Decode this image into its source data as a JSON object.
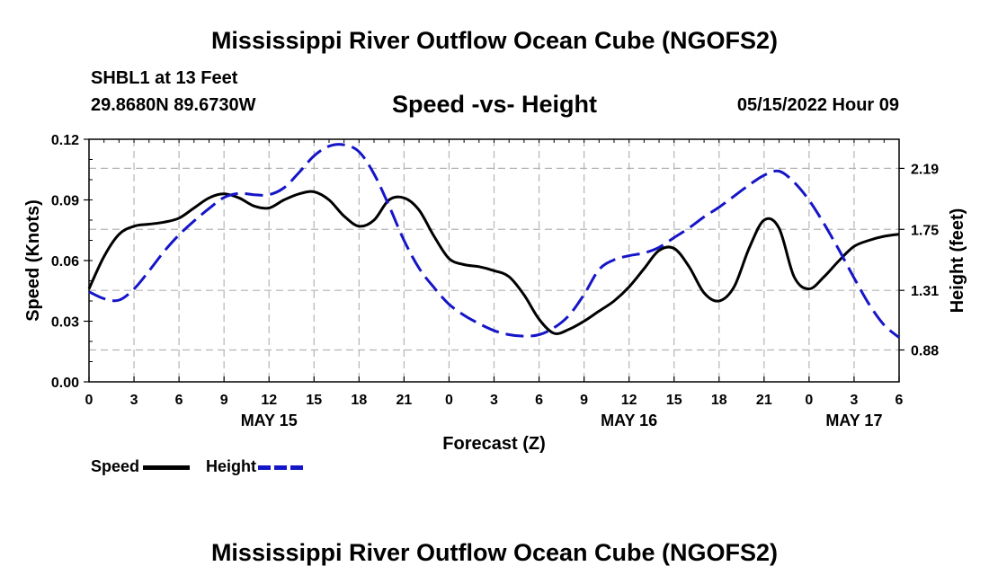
{
  "header": {
    "top_title": "Mississippi River Outflow Ocean Cube (NGOFS2)",
    "station": "SHBL1 at 13 Feet",
    "coordinates": "29.8680N  89.6730W",
    "run_time": "05/15/2022 Hour 09",
    "bottom_title": "Mississippi River Outflow Ocean Cube (NGOFS2)"
  },
  "colors": {
    "speed": "#000000",
    "height": "#1515c8",
    "grid": "#b4b4b4"
  },
  "chart_data": {
    "type": "line",
    "title": "Speed -vs- Height",
    "xlabel": "Forecast (Z)",
    "ylabel": "Speed (Knots)",
    "y2label": "Height (feet)",
    "xlim": [
      0,
      54
    ],
    "ylim": [
      0,
      0.12
    ],
    "y2lim": [
      0.65,
      2.4
    ],
    "x_ticks": [
      0,
      3,
      6,
      9,
      12,
      15,
      18,
      21,
      24,
      27,
      30,
      33,
      36,
      39,
      42,
      45,
      48,
      51,
      54
    ],
    "x_tick_labels": [
      "0",
      "3",
      "6",
      "9",
      "12",
      "15",
      "18",
      "21",
      "0",
      "3",
      "6",
      "9",
      "12",
      "15",
      "18",
      "21",
      "0",
      "3",
      "6"
    ],
    "date_labels": [
      {
        "x": 12,
        "label": "MAY 15"
      },
      {
        "x": 36,
        "label": "MAY 16"
      },
      {
        "x": 51,
        "label": "MAY 17"
      }
    ],
    "y_ticks": [
      0,
      0.03,
      0.06,
      0.09,
      0.12
    ],
    "y_tick_labels": [
      "0.00",
      "0.03",
      "0.06",
      "0.09",
      "0.12"
    ],
    "y2_ticks": [
      0.88,
      1.31,
      1.75,
      2.19
    ],
    "y2_tick_labels": [
      "0.88",
      "1.31",
      "1.75",
      "2.19"
    ],
    "grid": true,
    "legend_position": "bottom-left",
    "series": [
      {
        "name": "Speed",
        "axis": "left",
        "style": "solid",
        "x": [
          0,
          1,
          2,
          3,
          4,
          5,
          6,
          7,
          8,
          9,
          10,
          11,
          12,
          13,
          14,
          15,
          16,
          17,
          18,
          19,
          20,
          21,
          22,
          23,
          24,
          25,
          26,
          27,
          28,
          29,
          30,
          31,
          32,
          33,
          34,
          35,
          36,
          37,
          38,
          39,
          40,
          41,
          42,
          43,
          44,
          45,
          46,
          47,
          48,
          49,
          50,
          51,
          52,
          53,
          54
        ],
        "values": [
          0.046,
          0.062,
          0.073,
          0.077,
          0.078,
          0.079,
          0.081,
          0.086,
          0.091,
          0.093,
          0.091,
          0.087,
          0.086,
          0.09,
          0.093,
          0.094,
          0.09,
          0.082,
          0.077,
          0.08,
          0.09,
          0.091,
          0.085,
          0.072,
          0.061,
          0.058,
          0.057,
          0.055,
          0.052,
          0.043,
          0.031,
          0.024,
          0.026,
          0.03,
          0.035,
          0.04,
          0.047,
          0.056,
          0.065,
          0.066,
          0.057,
          0.044,
          0.04,
          0.047,
          0.066,
          0.08,
          0.076,
          0.052,
          0.046,
          0.052,
          0.06,
          0.067,
          0.07,
          0.072,
          0.073
        ]
      },
      {
        "name": "Height",
        "axis": "right",
        "style": "dashed",
        "x": [
          0,
          1,
          2,
          3,
          4,
          5,
          6,
          7,
          8,
          9,
          10,
          11,
          12,
          13,
          14,
          15,
          16,
          17,
          18,
          19,
          20,
          21,
          22,
          23,
          24,
          25,
          26,
          27,
          28,
          29,
          30,
          31,
          32,
          33,
          34,
          35,
          36,
          37,
          38,
          39,
          40,
          41,
          42,
          43,
          44,
          45,
          46,
          47,
          48,
          49,
          50,
          51,
          52,
          53,
          54
        ],
        "values": [
          1.3,
          1.25,
          1.24,
          1.32,
          1.45,
          1.59,
          1.71,
          1.81,
          1.9,
          1.98,
          2.01,
          2.0,
          2.0,
          2.05,
          2.16,
          2.28,
          2.35,
          2.36,
          2.31,
          2.15,
          1.92,
          1.67,
          1.47,
          1.33,
          1.21,
          1.13,
          1.07,
          1.02,
          0.99,
          0.98,
          0.99,
          1.04,
          1.13,
          1.28,
          1.46,
          1.53,
          1.56,
          1.58,
          1.62,
          1.69,
          1.76,
          1.84,
          1.91,
          1.99,
          2.07,
          2.14,
          2.17,
          2.09,
          1.96,
          1.79,
          1.6,
          1.4,
          1.21,
          1.06,
          0.97
        ]
      }
    ]
  },
  "legend": {
    "speed_label": "Speed",
    "height_label": "Height"
  }
}
